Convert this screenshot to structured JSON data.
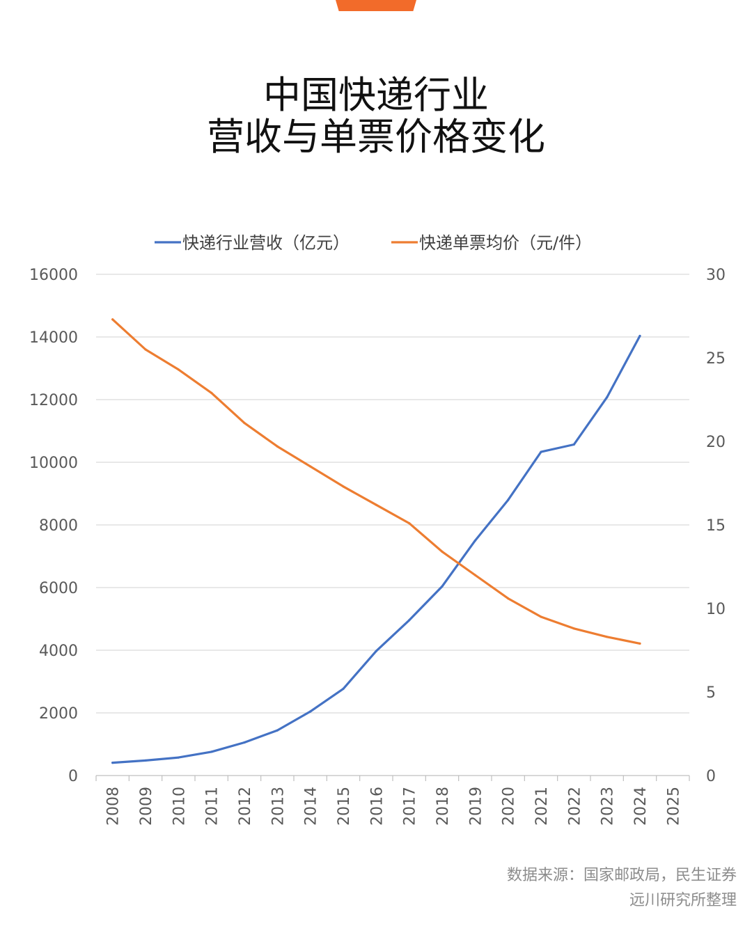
{
  "header": {
    "title_line1": "中国快递行业",
    "title_line2": "营收与单票价格变化"
  },
  "footer": {
    "source_line1": "数据来源：国家邮政局，民生证券",
    "source_line2": "远川研究所整理"
  },
  "colors": {
    "accent_tab": "#f26b2a",
    "revenue": "#4472c4",
    "price": "#ed7d31",
    "grid": "#d9d9d9"
  },
  "chart_data": {
    "type": "line",
    "title": "中国快递行业营收与单票价格变化",
    "legend_position": "top-center",
    "grid": true,
    "categories": [
      "2008",
      "2009",
      "2010",
      "2011",
      "2012",
      "2013",
      "2014",
      "2015",
      "2016",
      "2017",
      "2018",
      "2019",
      "2020",
      "2021",
      "2022",
      "2023",
      "2024",
      "2025"
    ],
    "y_left": {
      "range": [
        0,
        16000
      ],
      "ticks": [
        "0",
        "2000",
        "4000",
        "6000",
        "8000",
        "10000",
        "12000",
        "14000",
        "16000"
      ]
    },
    "y_right": {
      "range": [
        0,
        30
      ],
      "ticks": [
        "0",
        "5",
        "10",
        "15",
        "20",
        "25",
        "30"
      ]
    },
    "series": [
      {
        "name": "快递行业营收（亿元）",
        "axis": "left",
        "color": "#4472c4",
        "values": [
          408,
          480,
          575,
          758,
          1055,
          1442,
          2045,
          2770,
          3974,
          4957,
          6038,
          7498,
          8795,
          10332,
          10567,
          12074,
          14034,
          null
        ]
      },
      {
        "name": "快递单票均价（元/件）",
        "axis": "right",
        "color": "#ed7d31",
        "values": [
          27.3,
          25.5,
          24.3,
          22.9,
          21.1,
          19.7,
          18.5,
          17.3,
          16.2,
          15.1,
          13.4,
          12.0,
          10.6,
          9.5,
          8.8,
          8.3,
          7.9,
          null
        ]
      }
    ]
  }
}
